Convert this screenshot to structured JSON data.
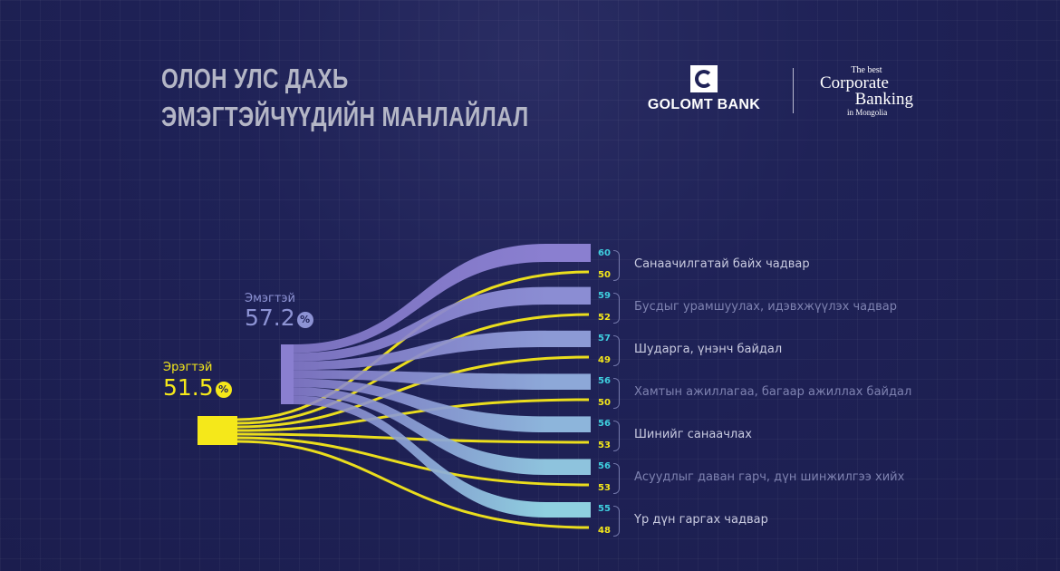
{
  "header": {
    "title_line1": "ОЛОН УЛС ДАХЬ",
    "title_line2": "ЭМЭГТЭЙЧҮҮДИЙН МАНЛАЙЛАЛ",
    "logo_name": "GOLOMT BANK",
    "award_line1": "The best",
    "award_line2": "Corporate",
    "award_line3": "Banking",
    "award_line4": "in Mongolia"
  },
  "chart_data": {
    "type": "sankey",
    "sources": [
      {
        "name": "Эмэгтэй",
        "value": "57.2",
        "unit": "%",
        "color": "#8d93d4"
      },
      {
        "name": "Эрэгтэй",
        "value": "51.5",
        "unit": "%",
        "color": "#f5e81a"
      }
    ],
    "categories": [
      {
        "label": "Санаачилгатай байх чадвар",
        "women": 60,
        "men": 50,
        "highlight": true
      },
      {
        "label": "Бусдыг урамшуулах, идэвхжүүлэх чадвар",
        "women": 59,
        "men": 52,
        "highlight": false
      },
      {
        "label": "Шударга, үнэнч байдал",
        "women": 57,
        "men": 49,
        "highlight": true
      },
      {
        "label": "Хамтын ажиллагаа, багаар ажиллах байдал",
        "women": 56,
        "men": 50,
        "highlight": false
      },
      {
        "label": "Шинийг санаачлах",
        "women": 56,
        "men": 53,
        "highlight": true
      },
      {
        "label": "Асуудлыг даван гарч, дүн шинжилгээ хийх",
        "women": 56,
        "men": 53,
        "highlight": false
      },
      {
        "label": "Үр дүн гаргах чадвар",
        "women": 55,
        "men": 48,
        "highlight": true
      }
    ],
    "colors": {
      "women_start": "#8a7fd0",
      "women_end": "#8fd0e0",
      "men": "#f5e81a",
      "women_number": "#3fd0e0",
      "label_bright": "#c9cbe0",
      "label_dim": "#7e82b0"
    }
  }
}
